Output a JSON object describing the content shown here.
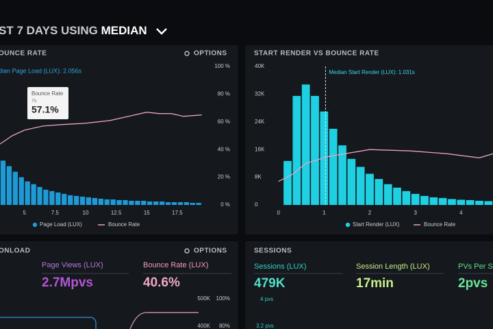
{
  "header": {
    "prefix": "ST 7 DAYS USING",
    "mode": "MEDIAN"
  },
  "chart_data": [
    {
      "type": "histogram",
      "title": "OUNCE RATE",
      "options": "OPTIONS",
      "annotation": "dian Page Load (LUX): 2.056s",
      "tooltip": {
        "title": "Bounce Rate",
        "subtitle": "7s",
        "value": "57.1%"
      },
      "bins": [
        3,
        3.5,
        4,
        4.5,
        5,
        5.5,
        6,
        6.5,
        7,
        7.5,
        8,
        8.5,
        9,
        9.5,
        10,
        10.5,
        11,
        11.5,
        12,
        12.5,
        13,
        13.5,
        14,
        14.5,
        15,
        15.5,
        16,
        16.5,
        17,
        17.5,
        18,
        18.5,
        19,
        19.5
      ],
      "series": [
        {
          "name": "Page Load (LUX)",
          "color": "#1e9ad6",
          "values": [
            32,
            28,
            24,
            20,
            17,
            15,
            13,
            11,
            10,
            9,
            8,
            7,
            6.5,
            6,
            5.5,
            5,
            4.5,
            4,
            4,
            3.5,
            3.5,
            3,
            3,
            3,
            2.5,
            2.5,
            2.5,
            2,
            2,
            2,
            2,
            1.5,
            1.5
          ]
        },
        {
          "name": "Bounce Rate",
          "color": "#e7a2c2",
          "type": "line",
          "axis": "y2",
          "x": [
            3,
            4,
            5,
            6.5,
            8,
            10,
            12,
            13.5,
            15,
            16,
            17,
            18,
            19.5
          ],
          "values": [
            44,
            50,
            54,
            57,
            58,
            59,
            61,
            64,
            67,
            66,
            66,
            64,
            65
          ]
        }
      ],
      "xlim": [
        3,
        19.8
      ],
      "xticks": [
        5,
        7.5,
        10,
        12.5,
        15,
        17.5
      ],
      "ylim": [
        0,
        100
      ],
      "y2lim": [
        0,
        100
      ],
      "y2ticks": [
        {
          "value": 0,
          "label": "0 %"
        },
        {
          "value": 20,
          "label": "20 %"
        },
        {
          "value": 40,
          "label": "40 %"
        },
        {
          "value": 60,
          "label": "60 %"
        },
        {
          "value": 80,
          "label": "80 %"
        },
        {
          "value": 100,
          "label": "100 %"
        }
      ]
    },
    {
      "type": "histogram",
      "title": "START RENDER VS BOUNCE RATE",
      "annotation": "Median Start Render (LUX): 1.031s",
      "median_x": 1.031,
      "bins": [
        0.1,
        0.3,
        0.5,
        0.7,
        0.9,
        1.1,
        1.3,
        1.5,
        1.7,
        1.9,
        2.1,
        2.3,
        2.5,
        2.7,
        2.9,
        3.1,
        3.3,
        3.5,
        3.7,
        3.9,
        4.1,
        4.3,
        4.5,
        4.7,
        4.9
      ],
      "series": [
        {
          "name": "Start Render (LUX)",
          "color": "#1fd0e3",
          "values": [
            12700,
            31500,
            34800,
            31500,
            27000,
            22000,
            17200,
            13300,
            11000,
            9000,
            7500,
            6000,
            5000,
            4000,
            3200,
            2600,
            2200,
            2000,
            1700,
            1500,
            1400,
            1200,
            1100,
            1000
          ]
        },
        {
          "name": "Bounce Rate",
          "color": "#e7a2c2",
          "type": "line",
          "axis": "y2",
          "x": [
            0,
            0.3,
            0.6,
            1.1,
            2,
            2.9,
            3.7,
            4.4,
            4.7
          ],
          "values": [
            17,
            22,
            30,
            35,
            40,
            39,
            37,
            34,
            37
          ]
        }
      ],
      "xlim": [
        -0.1,
        4.7
      ],
      "xticks": [
        0,
        1,
        2,
        3,
        4
      ],
      "ylim": [
        0,
        40000
      ],
      "yticks": [
        0,
        {
          "value": 8000,
          "label": "8K"
        },
        {
          "value": 16000,
          "label": "16K"
        },
        {
          "value": 24000,
          "label": "24K"
        },
        {
          "value": 32000,
          "label": "32K"
        },
        {
          "value": 40000,
          "label": "40K"
        }
      ],
      "y2lim": [
        0,
        100
      ]
    }
  ],
  "bottom": {
    "left": {
      "title": "ONLOAD",
      "options": "OPTIONS",
      "metrics": [
        {
          "label": "Page Views (LUX)",
          "value": "2.7Mpvs"
        },
        {
          "label": "Bounce Rate (LUX)",
          "value": "40.6%"
        }
      ],
      "axis": [
        "500K",
        "100%",
        "400K",
        "80%"
      ]
    },
    "right": {
      "title": "SESSIONS",
      "metrics": [
        {
          "label": "Sessions (LUX)",
          "value": "479K"
        },
        {
          "label": "Session Length (LUX)",
          "value": "17min"
        },
        {
          "label": "PVs Per S",
          "value": "2pvs"
        }
      ],
      "axis": [
        "4 pvs",
        "3.2 pvs"
      ]
    }
  }
}
